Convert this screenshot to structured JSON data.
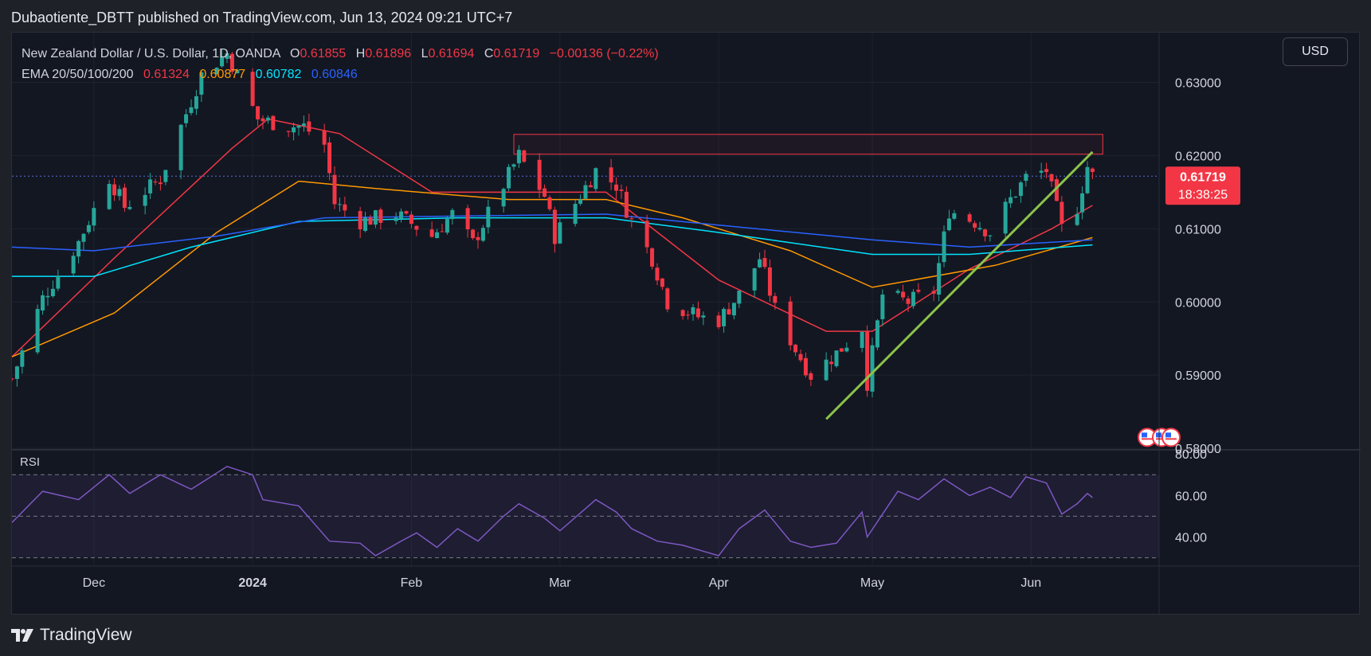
{
  "header": {
    "published_by": "Dubaotiente_DBTT published on TradingView.com, Jun 13, 2024 09:21 UTC+7"
  },
  "legend": {
    "symbol": "New Zealand Dollar / U.S. Dollar, 1D, OANDA",
    "o_label": "O",
    "o": "0.61855",
    "h_label": "H",
    "h": "0.61896",
    "l_label": "L",
    "l": "0.61694",
    "c_label": "C",
    "c": "0.61719",
    "change": "−0.00136 (−0.22%)",
    "ema_label": "EMA 20/50/100/200",
    "ema20": "0.61324",
    "ema50": "0.60877",
    "ema100": "0.60782",
    "ema200": "0.60846"
  },
  "currency_button": "USD",
  "price_tag": {
    "price": "0.61719",
    "countdown": "18:38:25"
  },
  "rsi_label": "RSI",
  "footer": {
    "brand": "TradingView"
  },
  "colors": {
    "background": "#131722",
    "up": "#26a69a",
    "down": "#f23645",
    "ema20": "#f23645",
    "ema50": "#ff9800",
    "ema100": "#00e5ff",
    "ema200": "#2962ff",
    "trendline": "#8bc34a",
    "rsi": "#7e57c2",
    "resistance_box": "#f23645"
  },
  "chart_data": [
    {
      "type": "candlestick",
      "title": "New Zealand Dollar / U.S. Dollar, 1D, OANDA",
      "x_tick_labels": [
        "Dec",
        "2024",
        "Feb",
        "Mar",
        "Apr",
        "May",
        "Jun"
      ],
      "x_tick_dates": [
        "2023-12-01",
        "2024-01-01",
        "2024-02-01",
        "2024-03-01",
        "2024-04-01",
        "2024-05-01",
        "2024-06-01"
      ],
      "xlim": [
        "2023-11-15",
        "2024-06-26"
      ],
      "y_tick_labels": [
        "0.63000",
        "0.62000",
        "0.61000",
        "0.60000",
        "0.59000",
        "0.58000"
      ],
      "ylim": [
        0.5798,
        0.6368
      ],
      "close_path": [
        [
          "2023-11-15",
          0.5895
        ],
        [
          "2023-11-21",
          0.6005
        ],
        [
          "2023-11-28",
          0.6082
        ],
        [
          "2023-12-04",
          0.617
        ],
        [
          "2023-12-07",
          0.613
        ],
        [
          "2023-12-14",
          0.6168
        ],
        [
          "2023-12-18",
          0.624
        ],
        [
          "2023-12-22",
          0.631
        ],
        [
          "2023-12-27",
          0.634
        ],
        [
          "2024-01-02",
          0.625
        ],
        [
          "2024-01-08",
          0.624
        ],
        [
          "2024-01-11",
          0.624
        ],
        [
          "2024-01-15",
          0.6215
        ],
        [
          "2024-01-17",
          0.6135
        ],
        [
          "2024-01-22",
          0.611
        ],
        [
          "2024-01-29",
          0.612
        ],
        [
          "2024-02-05",
          0.609
        ],
        [
          "2024-02-09",
          0.612
        ],
        [
          "2024-02-13",
          0.608
        ],
        [
          "2024-02-19",
          0.616
        ],
        [
          "2024-02-22",
          0.62
        ],
        [
          "2024-02-27",
          0.6145
        ],
        [
          "2024-02-29",
          0.609
        ],
        [
          "2024-03-08",
          0.618
        ],
        [
          "2024-03-12",
          0.616
        ],
        [
          "2024-03-15",
          0.611
        ],
        [
          "2024-03-19",
          0.606
        ],
        [
          "2024-03-22",
          0.6
        ],
        [
          "2024-03-28",
          0.598
        ],
        [
          "2024-04-01",
          0.5975
        ],
        [
          "2024-04-05",
          0.601
        ],
        [
          "2024-04-09",
          0.606
        ],
        [
          "2024-04-12",
          0.599
        ],
        [
          "2024-04-16",
          0.5935
        ],
        [
          "2024-04-19",
          0.59
        ],
        [
          "2024-04-24",
          0.593
        ],
        [
          "2024-04-29",
          0.5965
        ],
        [
          "2024-04-30",
          0.589
        ],
        [
          "2024-05-03",
          0.601
        ],
        [
          "2024-05-08",
          0.6
        ],
        [
          "2024-05-13",
          0.6015
        ],
        [
          "2024-05-16",
          0.6125
        ],
        [
          "2024-05-21",
          0.611
        ],
        [
          "2024-05-24",
          0.6095
        ],
        [
          "2024-05-28",
          0.614
        ],
        [
          "2024-05-31",
          0.617
        ],
        [
          "2024-06-04",
          0.618
        ],
        [
          "2024-06-07",
          0.61
        ],
        [
          "2024-06-10",
          0.613
        ],
        [
          "2024-06-12",
          0.6185
        ],
        [
          "2024-06-13",
          0.6172
        ]
      ],
      "ema_series": [
        {
          "name": "EMA 20",
          "points": [
            [
              "2023-11-15",
              0.5925
            ],
            [
              "2023-12-05",
              0.606
            ],
            [
              "2023-12-28",
              0.621
            ],
            [
              "2024-01-04",
              0.625
            ],
            [
              "2024-01-18",
              0.623
            ],
            [
              "2024-02-05",
              0.615
            ],
            [
              "2024-02-25",
              0.615
            ],
            [
              "2024-03-10",
              0.615
            ],
            [
              "2024-04-01",
              0.603
            ],
            [
              "2024-04-22",
              0.596
            ],
            [
              "2024-05-01",
              0.596
            ],
            [
              "2024-05-20",
              0.6045
            ],
            [
              "2024-06-05",
              0.61
            ],
            [
              "2024-06-13",
              0.6132
            ]
          ]
        },
        {
          "name": "EMA 50",
          "points": [
            [
              "2023-11-15",
              0.5925
            ],
            [
              "2023-12-05",
              0.5985
            ],
            [
              "2023-12-25",
              0.6095
            ],
            [
              "2024-01-10",
              0.6165
            ],
            [
              "2024-01-25",
              0.6155
            ],
            [
              "2024-02-20",
              0.614
            ],
            [
              "2024-03-10",
              0.614
            ],
            [
              "2024-03-25",
              0.6115
            ],
            [
              "2024-04-15",
              0.607
            ],
            [
              "2024-05-01",
              0.602
            ],
            [
              "2024-05-25",
              0.605
            ],
            [
              "2024-06-13",
              0.6088
            ]
          ]
        },
        {
          "name": "EMA 100",
          "points": [
            [
              "2023-11-15",
              0.6035
            ],
            [
              "2023-12-01",
              0.6035
            ],
            [
              "2023-12-20",
              0.6075
            ],
            [
              "2024-01-10",
              0.611
            ],
            [
              "2024-02-10",
              0.6115
            ],
            [
              "2024-03-10",
              0.6115
            ],
            [
              "2024-04-01",
              0.6095
            ],
            [
              "2024-05-01",
              0.6065
            ],
            [
              "2024-05-20",
              0.6065
            ],
            [
              "2024-06-13",
              0.6078
            ]
          ]
        },
        {
          "name": "EMA 200",
          "points": [
            [
              "2023-11-15",
              0.6075
            ],
            [
              "2023-12-01",
              0.607
            ],
            [
              "2023-12-25",
              0.609
            ],
            [
              "2024-01-15",
              0.6115
            ],
            [
              "2024-03-10",
              0.612
            ],
            [
              "2024-04-01",
              0.6105
            ],
            [
              "2024-05-01",
              0.6085
            ],
            [
              "2024-05-20",
              0.6075
            ],
            [
              "2024-06-13",
              0.6085
            ]
          ]
        }
      ],
      "trendline": [
        [
          "2024-04-22",
          0.584
        ],
        [
          "2024-06-13",
          0.6205
        ]
      ],
      "resistance_zone": {
        "x_start": "2024-02-21",
        "x_end": "2024-06-15",
        "y_low": 0.6202,
        "y_high": 0.6229
      },
      "last_price": 0.61719
    },
    {
      "type": "line",
      "title": "RSI",
      "y_tick_labels": [
        "80.00",
        "60.00",
        "40.00"
      ],
      "ylim": [
        26,
        82
      ],
      "band": [
        30,
        70
      ],
      "midline": 50,
      "points": [
        [
          "2023-11-15",
          47
        ],
        [
          "2023-11-21",
          62
        ],
        [
          "2023-11-28",
          58
        ],
        [
          "2023-12-04",
          70
        ],
        [
          "2023-12-08",
          61
        ],
        [
          "2023-12-14",
          70
        ],
        [
          "2023-12-20",
          63
        ],
        [
          "2023-12-27",
          74
        ],
        [
          "2024-01-01",
          70
        ],
        [
          "2024-01-03",
          58
        ],
        [
          "2024-01-10",
          55
        ],
        [
          "2024-01-16",
          38
        ],
        [
          "2024-01-22",
          37
        ],
        [
          "2024-01-25",
          31
        ],
        [
          "2024-01-30",
          38
        ],
        [
          "2024-02-02",
          42
        ],
        [
          "2024-02-06",
          35
        ],
        [
          "2024-02-10",
          44
        ],
        [
          "2024-02-14",
          38
        ],
        [
          "2024-02-19",
          50
        ],
        [
          "2024-02-22",
          56
        ],
        [
          "2024-02-27",
          49
        ],
        [
          "2024-03-01",
          43
        ],
        [
          "2024-03-08",
          58
        ],
        [
          "2024-03-12",
          52
        ],
        [
          "2024-03-15",
          44
        ],
        [
          "2024-03-20",
          38
        ],
        [
          "2024-03-25",
          36
        ],
        [
          "2024-04-01",
          31
        ],
        [
          "2024-04-05",
          44
        ],
        [
          "2024-04-10",
          53
        ],
        [
          "2024-04-15",
          38
        ],
        [
          "2024-04-19",
          35
        ],
        [
          "2024-04-24",
          37
        ],
        [
          "2024-04-29",
          52
        ],
        [
          "2024-04-30",
          40
        ],
        [
          "2024-05-06",
          62
        ],
        [
          "2024-05-10",
          58
        ],
        [
          "2024-05-15",
          68
        ],
        [
          "2024-05-20",
          60
        ],
        [
          "2024-05-24",
          64
        ],
        [
          "2024-05-28",
          59
        ],
        [
          "2024-05-31",
          69
        ],
        [
          "2024-06-04",
          66
        ],
        [
          "2024-06-07",
          51
        ],
        [
          "2024-06-10",
          56
        ],
        [
          "2024-06-12",
          61
        ],
        [
          "2024-06-13",
          59
        ]
      ]
    }
  ]
}
